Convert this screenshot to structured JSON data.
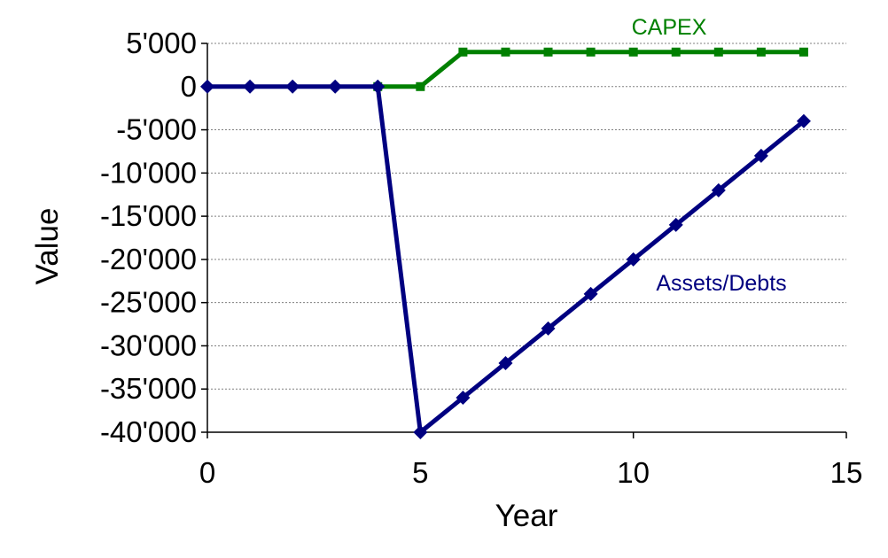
{
  "chart_data": {
    "type": "line",
    "title": "",
    "xlabel": "Year",
    "ylabel": "Value",
    "xlim": [
      0,
      15
    ],
    "ylim": [
      -40000,
      5000
    ],
    "x_ticks": [
      {
        "value": 0,
        "label": "0"
      },
      {
        "value": 5,
        "label": "5"
      },
      {
        "value": 10,
        "label": "10"
      },
      {
        "value": 15,
        "label": "15"
      }
    ],
    "y_ticks": [
      {
        "value": 5000,
        "label": "5'000"
      },
      {
        "value": 0,
        "label": "0"
      },
      {
        "value": -5000,
        "label": "-5'000"
      },
      {
        "value": -10000,
        "label": "-10'000"
      },
      {
        "value": -15000,
        "label": "-15'000"
      },
      {
        "value": -20000,
        "label": "-20'000"
      },
      {
        "value": -25000,
        "label": "-25'000"
      },
      {
        "value": -30000,
        "label": "-30'000"
      },
      {
        "value": -35000,
        "label": "-35'000"
      },
      {
        "value": -40000,
        "label": "-40'000"
      }
    ],
    "grid": {
      "horizontal": true,
      "vertical": false
    },
    "legend": "none",
    "series": [
      {
        "name": "CAPEX",
        "color": "#008000",
        "marker": "square",
        "x": [
          4,
          5,
          6,
          7,
          8,
          9,
          10,
          11,
          12,
          13,
          14
        ],
        "values": [
          0,
          0,
          4000,
          4000,
          4000,
          4000,
          4000,
          4000,
          4000,
          4000,
          4000
        ]
      },
      {
        "name": "Assets/Debts",
        "color": "#000080",
        "marker": "diamond",
        "x": [
          0,
          1,
          2,
          3,
          4,
          5,
          6,
          7,
          8,
          9,
          10,
          11,
          12,
          13,
          14
        ],
        "values": [
          0,
          0,
          0,
          0,
          0,
          -40000,
          -36000,
          -32000,
          -28000,
          -24000,
          -20000,
          -16000,
          -12000,
          -8000,
          -4000
        ]
      }
    ]
  }
}
